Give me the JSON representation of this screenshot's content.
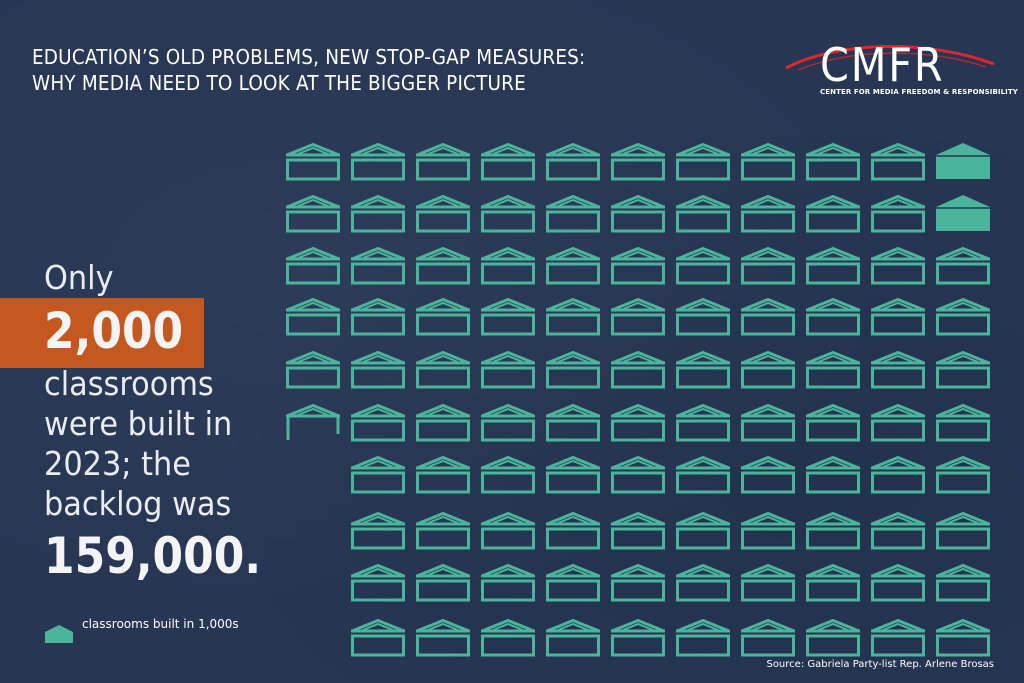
{
  "headline": {
    "line1": "EDUCATION’S OLD PROBLEMS, NEW STOP-GAP MEASURES:",
    "line2": "WHY MEDIA NEED TO LOOK AT THE BIGGER PICTURE"
  },
  "logo": {
    "letters": "CMFR",
    "subtitle": "CENTER FOR MEDIA FREEDOM & RESPONSIBILITY"
  },
  "stat": {
    "only": "Only",
    "built": "2,000",
    "line3": "classrooms",
    "line4": "were built in",
    "line5": "2023; the",
    "line6": "backlog was",
    "backlog": "159,000."
  },
  "legend": {
    "icon": "classroom-icon",
    "label": "classrooms built in 1,000s"
  },
  "source": "Source: Gabriela Party-list Rep. Arlene Brosas",
  "colors": {
    "background": "#263653",
    "icon": "#4bb59b",
    "highlight": "#c4581f",
    "logo_arc": "#e0262d"
  },
  "chart_data": {
    "type": "pictograph",
    "unit": "classrooms built in 1,000s",
    "backlog_thousands": 159,
    "built_thousands": 2,
    "rows": [
      {
        "outline": 10,
        "filled": 1
      },
      {
        "outline": 10,
        "filled": 1
      },
      {
        "outline": 11,
        "filled": 0
      },
      {
        "outline": 11,
        "filled": 0
      },
      {
        "outline": 11,
        "filled": 0
      },
      {
        "outline": 10,
        "filled": 0,
        "partial": 1
      },
      {
        "outline": 10,
        "filled": 0
      },
      {
        "outline": 10,
        "filled": 0
      },
      {
        "outline": 10,
        "filled": 0
      },
      {
        "outline": 10,
        "filled": 0
      }
    ]
  }
}
